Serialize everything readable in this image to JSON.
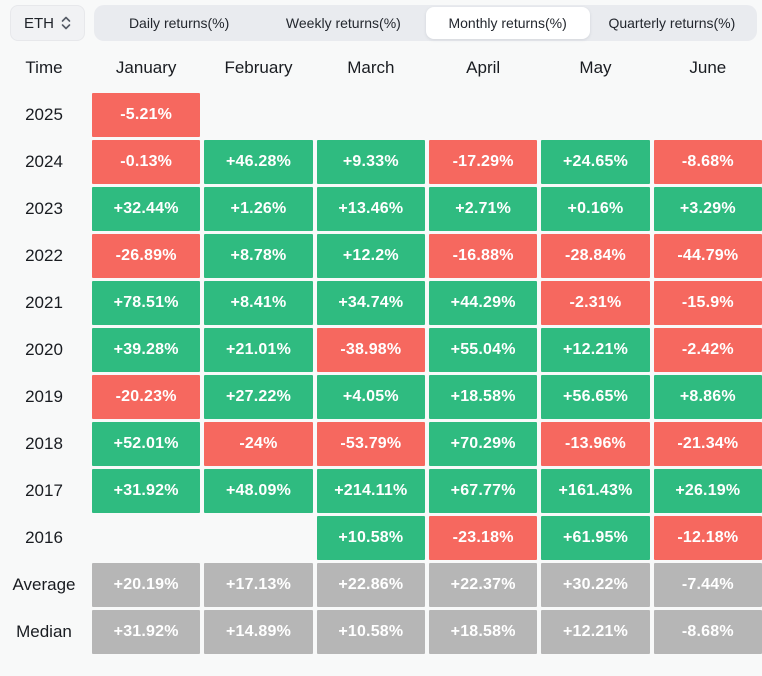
{
  "toolbar": {
    "coin": "ETH",
    "coin_selector_icon": "up-down-chevron-icon",
    "tabs": [
      "Daily returns(%)",
      "Weekly returns(%)",
      "Monthly returns(%)",
      "Quarterly returns(%)"
    ],
    "active_tab_index": 2
  },
  "colors": {
    "positive": "#2fbb80",
    "negative": "#f6685f",
    "stat": "#b6b6b6",
    "background": "#f8f9f9",
    "tab_bar": "#e9ebef",
    "active_tab": "#ffffff"
  },
  "table": {
    "columns": [
      "Time",
      "January",
      "February",
      "March",
      "April",
      "May",
      "June"
    ],
    "rows": [
      {
        "label": "2025",
        "type": "year",
        "values": [
          "-5.21%",
          null,
          null,
          null,
          null,
          null
        ]
      },
      {
        "label": "2024",
        "type": "year",
        "values": [
          "-0.13%",
          "+46.28%",
          "+9.33%",
          "-17.29%",
          "+24.65%",
          "-8.68%"
        ]
      },
      {
        "label": "2023",
        "type": "year",
        "values": [
          "+32.44%",
          "+1.26%",
          "+13.46%",
          "+2.71%",
          "+0.16%",
          "+3.29%"
        ]
      },
      {
        "label": "2022",
        "type": "year",
        "values": [
          "-26.89%",
          "+8.78%",
          "+12.2%",
          "-16.88%",
          "-28.84%",
          "-44.79%"
        ]
      },
      {
        "label": "2021",
        "type": "year",
        "values": [
          "+78.51%",
          "+8.41%",
          "+34.74%",
          "+44.29%",
          "-2.31%",
          "-15.9%"
        ]
      },
      {
        "label": "2020",
        "type": "year",
        "values": [
          "+39.28%",
          "+21.01%",
          "-38.98%",
          "+55.04%",
          "+12.21%",
          "-2.42%"
        ]
      },
      {
        "label": "2019",
        "type": "year",
        "values": [
          "-20.23%",
          "+27.22%",
          "+4.05%",
          "+18.58%",
          "+56.65%",
          "+8.86%"
        ]
      },
      {
        "label": "2018",
        "type": "year",
        "values": [
          "+52.01%",
          "-24%",
          "-53.79%",
          "+70.29%",
          "-13.96%",
          "-21.34%"
        ]
      },
      {
        "label": "2017",
        "type": "year",
        "values": [
          "+31.92%",
          "+48.09%",
          "+214.11%",
          "+67.77%",
          "+161.43%",
          "+26.19%"
        ]
      },
      {
        "label": "2016",
        "type": "year",
        "values": [
          null,
          null,
          "+10.58%",
          "-23.18%",
          "+61.95%",
          "-12.18%"
        ]
      },
      {
        "label": "Average",
        "type": "stat",
        "values": [
          "+20.19%",
          "+17.13%",
          "+22.86%",
          "+22.37%",
          "+30.22%",
          "-7.44%"
        ]
      },
      {
        "label": "Median",
        "type": "stat",
        "values": [
          "+31.92%",
          "+14.89%",
          "+10.58%",
          "+18.58%",
          "+12.21%",
          "-8.68%"
        ]
      }
    ]
  },
  "chart_data": {
    "type": "heatmap",
    "title": "ETH Monthly returns(%)",
    "x": [
      "January",
      "February",
      "March",
      "April",
      "May",
      "June"
    ],
    "y": [
      "2025",
      "2024",
      "2023",
      "2022",
      "2021",
      "2020",
      "2019",
      "2018",
      "2017",
      "2016",
      "Average",
      "Median"
    ],
    "values_pct": [
      [
        -5.21,
        null,
        null,
        null,
        null,
        null
      ],
      [
        -0.13,
        46.28,
        9.33,
        -17.29,
        24.65,
        -8.68
      ],
      [
        32.44,
        1.26,
        13.46,
        2.71,
        0.16,
        3.29
      ],
      [
        -26.89,
        8.78,
        12.2,
        -16.88,
        -28.84,
        -44.79
      ],
      [
        78.51,
        8.41,
        34.74,
        44.29,
        -2.31,
        -15.9
      ],
      [
        39.28,
        21.01,
        -38.98,
        55.04,
        12.21,
        -2.42
      ],
      [
        -20.23,
        27.22,
        4.05,
        18.58,
        56.65,
        8.86
      ],
      [
        52.01,
        -24,
        -53.79,
        70.29,
        -13.96,
        -21.34
      ],
      [
        31.92,
        48.09,
        214.11,
        67.77,
        161.43,
        26.19
      ],
      [
        null,
        null,
        10.58,
        -23.18,
        61.95,
        -12.18
      ],
      [
        20.19,
        17.13,
        22.86,
        22.37,
        30.22,
        -7.44
      ],
      [
        31.92,
        14.89,
        10.58,
        18.58,
        12.21,
        -8.68
      ]
    ],
    "color_rule": "positive=green, negative=red, Average/Median rows=gray, empty=no cell",
    "legend": "none",
    "grid": false
  }
}
